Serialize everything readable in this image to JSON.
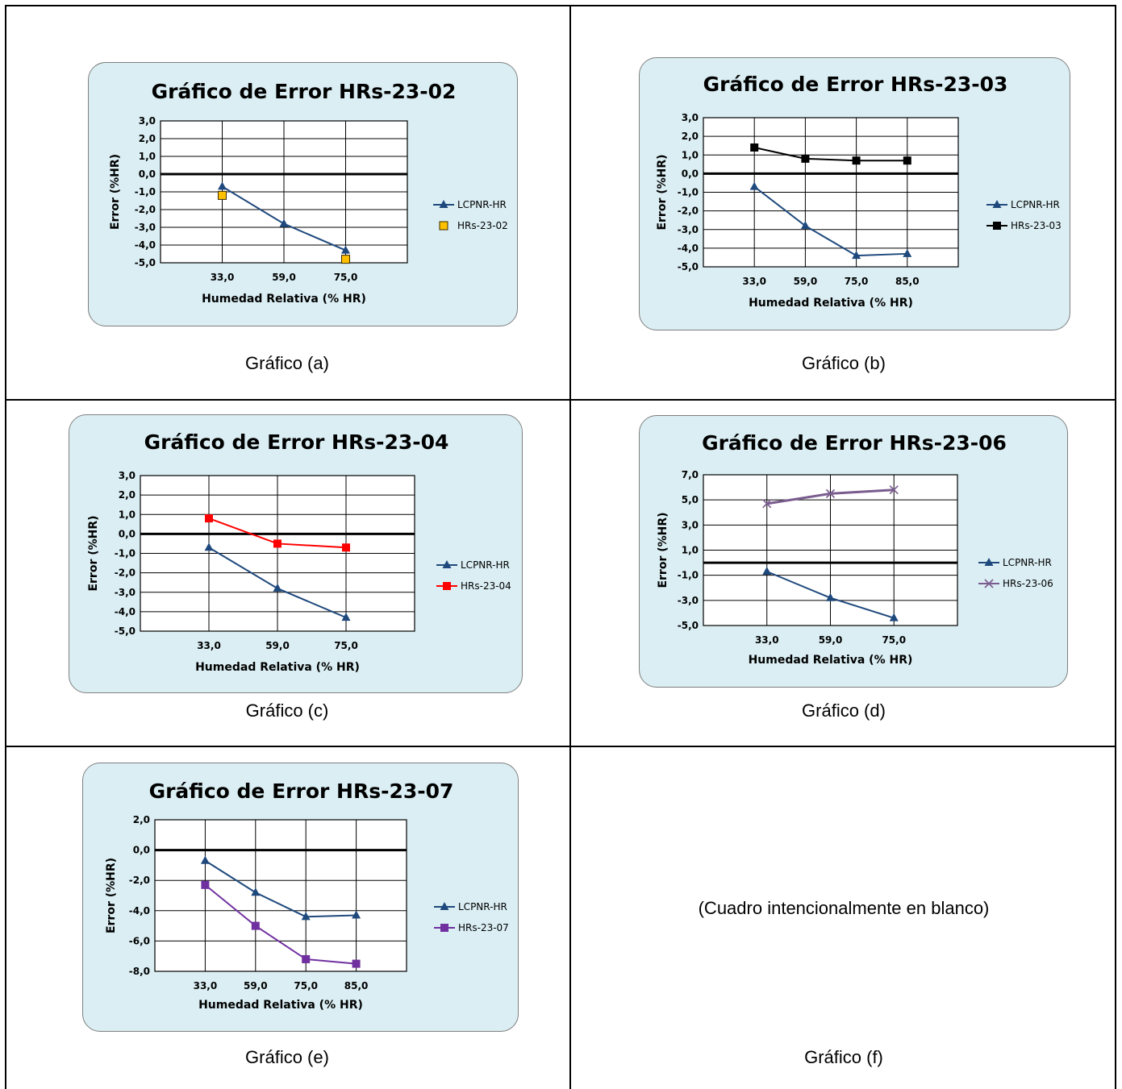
{
  "charts": [
    {
      "id": "a",
      "caption": "Gráfico (a)",
      "chart_data": {
        "type": "line",
        "title": "Gráfico de Error HRs-23-02",
        "xlabel": "Humedad Relativa (% HR)",
        "ylabel": "Error (%HR)",
        "categories": [
          "33,0",
          "59,0",
          "75,0"
        ],
        "ylim": [
          -5.0,
          3.0
        ],
        "ytick_step": 1.0,
        "yticks": [
          "3,0",
          "2,0",
          "1,0",
          "0,0",
          "-1,0",
          "-2,0",
          "-3,0",
          "-4,0",
          "-5,0"
        ],
        "grid": true,
        "legend_position": "right",
        "series": [
          {
            "name": "LCPNR-HR",
            "values": [
              -0.7,
              -2.8,
              -4.3
            ],
            "color": "#1f497d",
            "marker": "triangle",
            "line": true
          },
          {
            "name": "HRs-23-02",
            "values": [
              -1.2,
              null,
              -4.8
            ],
            "color": "#ffc000",
            "marker": "square-outlined",
            "line": false
          }
        ]
      }
    },
    {
      "id": "b",
      "caption": "Gráfico (b)",
      "chart_data": {
        "type": "line",
        "title": "Gráfico de Error HRs-23-03",
        "xlabel": "Humedad Relativa (% HR)",
        "ylabel": "Error (%HR)",
        "categories": [
          "33,0",
          "59,0",
          "75,0",
          "85,0"
        ],
        "ylim": [
          -5.0,
          3.0
        ],
        "ytick_step": 1.0,
        "yticks": [
          "3,0",
          "2,0",
          "1,0",
          "0,0",
          "-1,0",
          "-2,0",
          "-3,0",
          "-4,0",
          "-5,0"
        ],
        "grid": true,
        "legend_position": "right",
        "series": [
          {
            "name": "LCPNR-HR",
            "values": [
              -0.7,
              -2.8,
              -4.4,
              -4.3
            ],
            "color": "#1f497d",
            "marker": "triangle",
            "line": true
          },
          {
            "name": "HRs-23-03",
            "values": [
              1.4,
              0.8,
              0.7,
              0.7
            ],
            "color": "#000000",
            "marker": "square",
            "line": true
          }
        ]
      }
    },
    {
      "id": "c",
      "caption": "Gráfico (c)",
      "chart_data": {
        "type": "line",
        "title": "Gráfico de Error HRs-23-04",
        "xlabel": "Humedad Relativa (% HR)",
        "ylabel": "Error (%HR)",
        "categories": [
          "33,0",
          "59,0",
          "75,0"
        ],
        "ylim": [
          -5.0,
          3.0
        ],
        "ytick_step": 1.0,
        "yticks": [
          "3,0",
          "2,0",
          "1,0",
          "0,0",
          "-1,0",
          "-2,0",
          "-3,0",
          "-4,0",
          "-5,0"
        ],
        "grid": true,
        "legend_position": "right",
        "series": [
          {
            "name": "LCPNR-HR",
            "values": [
              -0.7,
              -2.8,
              -4.3
            ],
            "color": "#1f497d",
            "marker": "triangle",
            "line": true
          },
          {
            "name": "HRs-23-04",
            "values": [
              0.8,
              -0.5,
              -0.7
            ],
            "color": "#ff0000",
            "marker": "square",
            "line": true
          }
        ]
      }
    },
    {
      "id": "d",
      "caption": "Gráfico (d)",
      "chart_data": {
        "type": "line",
        "title": "Gráfico de Error HRs-23-06",
        "xlabel": "Humedad Relativa (% HR)",
        "ylabel": "Error (%HR)",
        "categories": [
          "33,0",
          "59,0",
          "75,0"
        ],
        "ylim": [
          -5.0,
          7.0
        ],
        "ytick_step": 2.0,
        "yticks": [
          "7,0",
          "5,0",
          "3,0",
          "1,0",
          "-1,0",
          "-3,0",
          "-5,0"
        ],
        "grid": true,
        "legend_position": "right",
        "series": [
          {
            "name": "LCPNR-HR",
            "values": [
              -0.7,
              -2.8,
              -4.4
            ],
            "color": "#1f497d",
            "marker": "triangle",
            "line": true
          },
          {
            "name": "HRs-23-06",
            "values": [
              4.7,
              5.5,
              5.8
            ],
            "color": "#7a5c8f",
            "marker": "x",
            "line": true
          }
        ]
      }
    },
    {
      "id": "e",
      "caption": "Gráfico (e)",
      "chart_data": {
        "type": "line",
        "title": "Gráfico de Error HRs-23-07",
        "xlabel": "Humedad Relativa (% HR)",
        "ylabel": "Error (%HR)",
        "categories": [
          "33,0",
          "59,0",
          "75,0",
          "85,0"
        ],
        "ylim": [
          -8.0,
          2.0
        ],
        "ytick_step": 2.0,
        "yticks": [
          "2,0",
          "0,0",
          "-2,0",
          "-4,0",
          "-6,0",
          "-8,0"
        ],
        "grid": true,
        "legend_position": "right",
        "series": [
          {
            "name": "LCPNR-HR",
            "values": [
              -0.7,
              -2.8,
              -4.4,
              -4.3
            ],
            "color": "#1f497d",
            "marker": "triangle",
            "line": true
          },
          {
            "name": "HRs-23-07",
            "values": [
              -2.3,
              -5.0,
              -7.2,
              -7.5
            ],
            "color": "#7030a0",
            "marker": "square",
            "line": true
          }
        ]
      }
    }
  ],
  "blank_cell": {
    "note": "(Cuadro intencionalmente en blanco)",
    "caption": "Gráfico (f)"
  }
}
